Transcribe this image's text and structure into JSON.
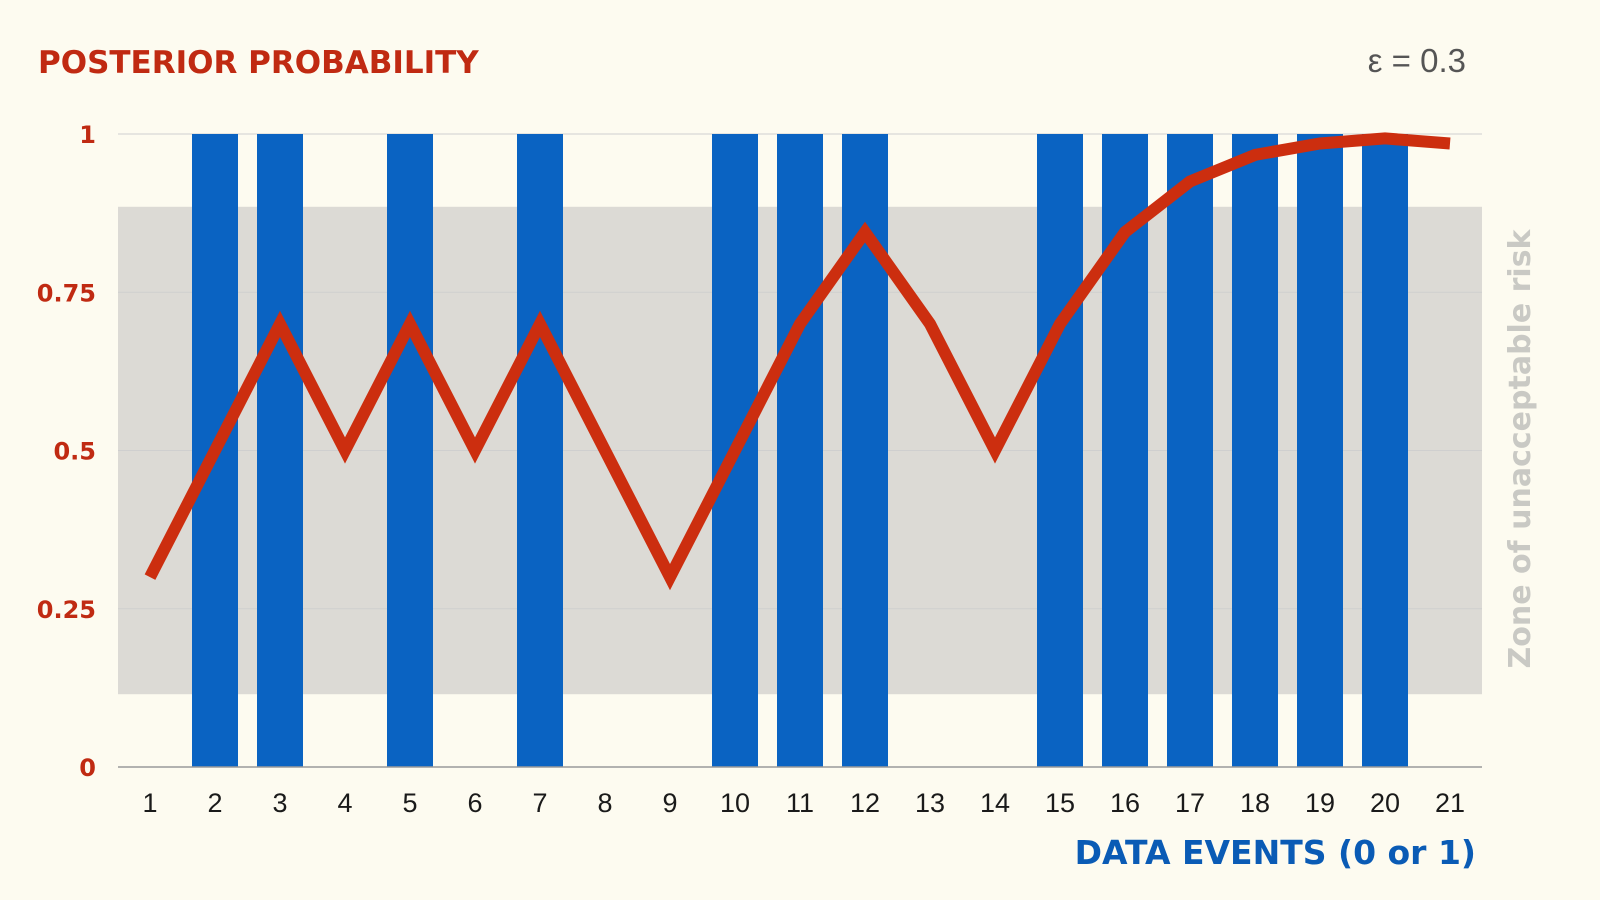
{
  "chart_data": {
    "type": "bar",
    "title": "POSTERIOR PROBABILITY",
    "xlabel": "DATA EVENTS (0 or 1)",
    "parameter_label": "ε = 0.3",
    "zone_label": "Zone of unacceptable risk",
    "zone_range": [
      0.115,
      0.885
    ],
    "ylim": [
      0,
      1
    ],
    "y_ticks": [
      "0",
      "0.25",
      "0.5",
      "0.75",
      "1"
    ],
    "y_tick_values": [
      0,
      0.25,
      0.5,
      0.75,
      1
    ],
    "categories": [
      "1",
      "2",
      "3",
      "4",
      "5",
      "6",
      "7",
      "8",
      "9",
      "10",
      "11",
      "12",
      "13",
      "14",
      "15",
      "16",
      "17",
      "18",
      "19",
      "20",
      "21"
    ],
    "series": [
      {
        "type": "bar",
        "values": [
          0,
          1,
          1,
          0,
          1,
          0,
          1,
          0,
          0,
          1,
          1,
          1,
          0,
          0,
          1,
          1,
          1,
          1,
          1,
          1,
          0
        ]
      },
      {
        "type": "line",
        "values": [
          0.3,
          0.5,
          0.7,
          0.5,
          0.7,
          0.5,
          0.7,
          0.5,
          0.3,
          0.5,
          0.7,
          0.845,
          0.7,
          0.5,
          0.7,
          0.845,
          0.925,
          0.967,
          0.985,
          0.993,
          0.985
        ]
      }
    ],
    "grid": true,
    "colors": {
      "bars": "#0a63c2",
      "line": "#cc2e0f",
      "zone": "#dcdad5",
      "grid": "#cfcfcf",
      "axis_ticks": "#c02a12",
      "xlabel": "#0a5bb5"
    }
  }
}
